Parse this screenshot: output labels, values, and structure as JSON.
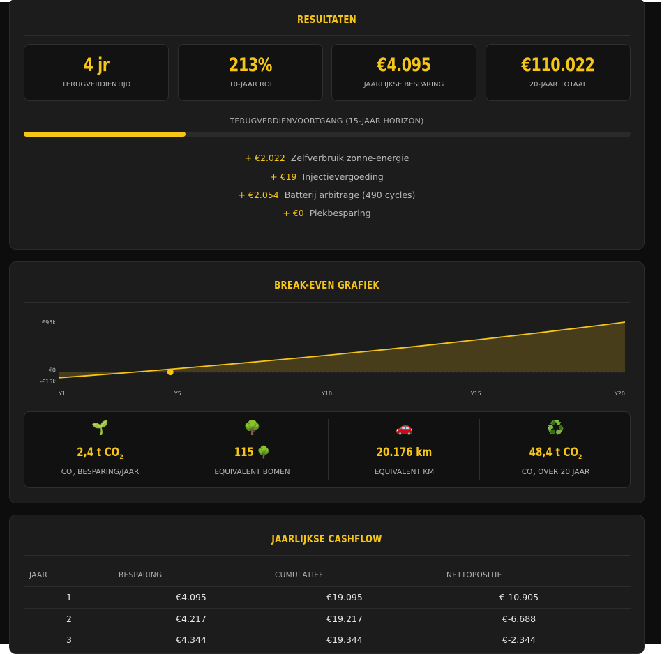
{
  "results": {
    "title": "RESULTATEN",
    "stats": [
      {
        "value": "4 jr",
        "label": "TERUGVERDIENTIJD"
      },
      {
        "value": "213%",
        "label": "10-JAAR ROI"
      },
      {
        "value": "€4.095",
        "label": "JAARLIJKSE BESPARING"
      },
      {
        "value": "€110.022",
        "label": "20-JAAR TOTAAL"
      }
    ],
    "progress_label": "TERUGVERDIENVOORTGANG (15-JAAR HORIZON)",
    "progress_fraction": 0.267,
    "breakdown": [
      {
        "amount": "+ €2.022",
        "desc": "Zelfverbruik zonne-energie"
      },
      {
        "amount": "+ €19",
        "desc": "Injectievergoeding"
      },
      {
        "amount": "+ €2.054",
        "desc": "Batterij arbitrage (490 cycles)"
      },
      {
        "amount": "+ €0",
        "desc": "Piekbesparing"
      }
    ]
  },
  "breakeven": {
    "title": "BREAK-EVEN GRAFIEK",
    "chart_data": {
      "type": "area",
      "x_ticks": [
        "Y1",
        "Y5",
        "Y10",
        "Y15",
        "Y20"
      ],
      "y_ticks": [
        "€95k",
        "€0",
        "-€15k"
      ],
      "x": [
        1,
        2,
        3,
        4,
        5,
        6,
        7,
        8,
        9,
        10,
        11,
        12,
        13,
        14,
        15,
        16,
        17,
        18,
        19,
        20
      ],
      "values": [
        -10905,
        -6688,
        -2344,
        2130,
        6738,
        11484,
        16372,
        21407,
        26592,
        31934,
        37435,
        43102,
        48939,
        54951,
        61143,
        67521,
        74090,
        80857,
        87826,
        95000
      ],
      "breakeven_year": 4,
      "ylim": [
        -15000,
        95000
      ],
      "color": "#f5c518"
    },
    "impact": [
      {
        "icon": "🌱",
        "value": "2,4 t CO",
        "value_sub": "2",
        "label_pre": "CO",
        "label_sub": "2",
        "label": " BESPARING/JAAR"
      },
      {
        "icon": "🌳",
        "value": "115 🌳",
        "value_sub": "",
        "label_pre": "",
        "label_sub": "",
        "label": "EQUIVALENT BOMEN"
      },
      {
        "icon": "🚗",
        "value": "20.176 km",
        "value_sub": "",
        "label_pre": "",
        "label_sub": "",
        "label": "EQUIVALENT KM"
      },
      {
        "icon": "♻️",
        "value": "48,4 t CO",
        "value_sub": "2",
        "label_pre": "CO",
        "label_sub": "2",
        "label": " OVER 20 JAAR"
      }
    ]
  },
  "cashflow": {
    "title": "JAARLIJKSE CASHFLOW",
    "headers": [
      "JAAR",
      "BESPARING",
      "CUMULATIEF",
      "NETTOPOSITIE"
    ],
    "rows": [
      [
        "1",
        "€4.095",
        "€19.095",
        "€-10.905"
      ],
      [
        "2",
        "€4.217",
        "€19.217",
        "€-6.688"
      ],
      [
        "3",
        "€4.344",
        "€19.344",
        "€-2.344"
      ]
    ]
  }
}
